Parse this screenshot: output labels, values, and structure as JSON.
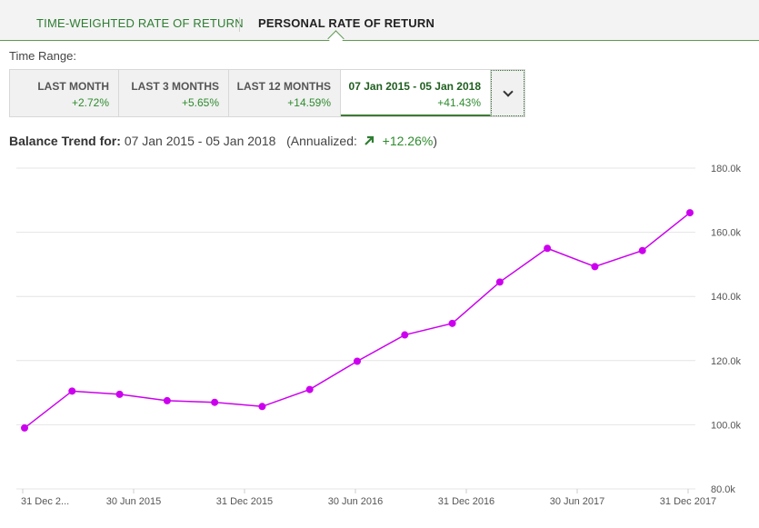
{
  "tabs": [
    {
      "label": "TIME-WEIGHTED RATE OF RETURN",
      "active": false
    },
    {
      "label": "PERSONAL RATE OF RETURN",
      "active": true
    }
  ],
  "time_range": {
    "label": "Time Range:",
    "options": [
      {
        "label": "LAST MONTH",
        "value": "+2.72%"
      },
      {
        "label": "LAST 3 MONTHS",
        "value": "+5.65%"
      },
      {
        "label": "LAST 12 MONTHS",
        "value": "+14.59%"
      },
      {
        "label": "07 Jan 2015 - 05 Jan 2018",
        "value": "+41.43%",
        "active": true
      }
    ],
    "dropdown_icon": "chevron-down-icon"
  },
  "trend": {
    "prefix": "Balance Trend for:",
    "range": "07 Jan 2015 - 05 Jan 2018",
    "annualized_label": "(Annualized:",
    "annualized_value": "+12.26%",
    "annualized_close": ")",
    "arrow_icon": "arrow-up-right-icon"
  },
  "colors": {
    "accent_green": "#2e7d32",
    "positive_green": "#2e8b2e",
    "series": "#cc00ee"
  },
  "chart_data": {
    "type": "line",
    "title": "",
    "xlabel": "",
    "ylabel": "",
    "x_ticks": [
      "31 Dec 2...",
      "30 Jun 2015",
      "31 Dec 2015",
      "30 Jun 2016",
      "31 Dec 2016",
      "30 Jun 2017",
      "31 Dec 2017"
    ],
    "y_ticks": [
      "80.0k",
      "100.0k",
      "120.0k",
      "140.0k",
      "160.0k",
      "180.0k"
    ],
    "ylim": [
      80000,
      180000
    ],
    "grid": true,
    "series": [
      {
        "values": [
          99000,
          110500,
          109500,
          107500,
          107000,
          105700,
          111000,
          119800,
          128000,
          131600,
          144500,
          155000,
          149300,
          154300,
          166100
        ]
      }
    ]
  }
}
